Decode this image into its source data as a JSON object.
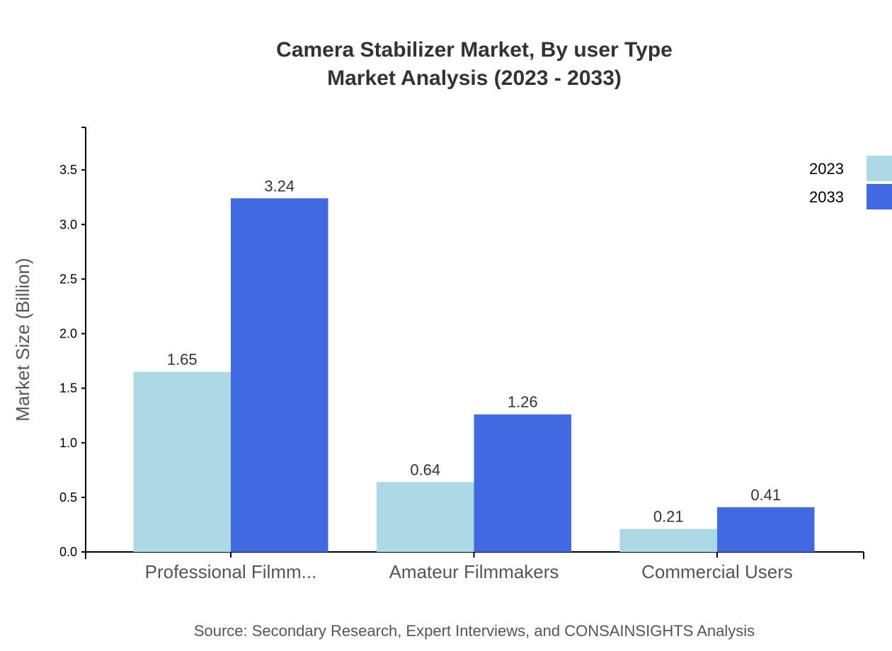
{
  "chart_data": {
    "type": "bar",
    "title": "Camera Stabilizer Market, By user Type",
    "subtitle": "Market Analysis (2023 - 2033)",
    "xlabel": "",
    "ylabel": "Market Size (Billion)",
    "categories": [
      "Professional Filmm...",
      "Amateur Filmmakers",
      "Commercial Users"
    ],
    "series": [
      {
        "name": "2023",
        "color": "#ADD8E6",
        "values": [
          1.65,
          0.64,
          0.21
        ]
      },
      {
        "name": "2033",
        "color": "#4169E1",
        "values": [
          3.24,
          1.26,
          0.41
        ]
      }
    ],
    "ylim": [
      0,
      3.89
    ],
    "yticks": [
      "0.0",
      "0.5",
      "1.0",
      "1.5",
      "2.0",
      "2.5",
      "3.0",
      "3.5"
    ],
    "grid": false,
    "legend_position": "top-right",
    "source": "Source: Secondary Research, Expert Interviews, and CONSAINSIGHTS Analysis"
  }
}
